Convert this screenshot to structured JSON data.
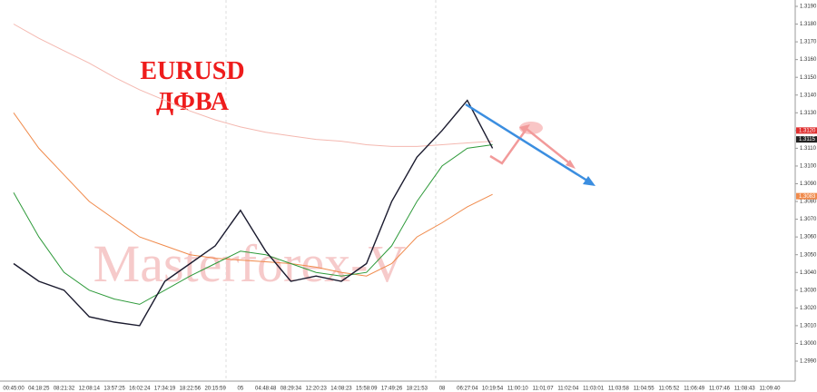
{
  "chart_data": {
    "type": "line",
    "annotations": [
      "EURUSD",
      "ДФВА"
    ],
    "watermark": "Masterforex-V",
    "categories": [
      "00:45:00",
      "04:18:25",
      "08:21:32",
      "12:08:14",
      "13:57:25",
      "16:02:24",
      "17:34:19",
      "18:22:56",
      "20:15:59",
      "05",
      "04:48:48",
      "08:29:34",
      "12:20:23",
      "14:08:23",
      "15:58:09",
      "17:49:26",
      "18:21:53",
      "08",
      "06:27:04",
      "10:19:54",
      "11:00:10",
      "11:01:07",
      "11:02:04",
      "11:03:01",
      "11:03:58",
      "11:04:55",
      "11:05:52",
      "11:06:49",
      "11:07:46",
      "11:08:43",
      "11:09:40"
    ],
    "series": [
      {
        "color": "#f4b8b0",
        "values": [
          1.318,
          1.3172,
          1.3165,
          1.3158,
          1.315,
          1.3143,
          1.3137,
          1.3131,
          1.3126,
          1.3122,
          1.3119,
          1.3117,
          1.3115,
          1.3114,
          1.3112,
          1.3111,
          1.3111,
          1.3112,
          1.3113,
          1.3114,
          null,
          null,
          null,
          null,
          null,
          null,
          null,
          null,
          null,
          null,
          null
        ]
      },
      {
        "color": "#f08a4b",
        "values": [
          1.313,
          1.311,
          1.3095,
          1.308,
          1.307,
          1.306,
          1.3055,
          1.305,
          1.3048,
          1.3047,
          1.3046,
          1.3045,
          1.3043,
          1.304,
          1.3038,
          1.3045,
          1.306,
          1.3068,
          1.3077,
          1.3084,
          null,
          null,
          null,
          null,
          null,
          null,
          null,
          null,
          null,
          null,
          null
        ]
      },
      {
        "color": "#2e9a3a",
        "values": [
          1.3085,
          1.306,
          1.304,
          1.303,
          1.3025,
          1.3022,
          1.303,
          1.3038,
          1.3045,
          1.3052,
          1.305,
          1.3045,
          1.304,
          1.3038,
          1.304,
          1.3055,
          1.308,
          1.31,
          1.311,
          1.3112,
          null,
          null,
          null,
          null,
          null,
          null,
          null,
          null,
          null,
          null,
          null
        ]
      },
      {
        "color": "#1a1a2e",
        "values": [
          1.3045,
          1.3035,
          1.303,
          1.3015,
          1.3012,
          1.301,
          1.3035,
          1.3045,
          1.3055,
          1.3075,
          1.3052,
          1.3035,
          1.3038,
          1.3035,
          1.3045,
          1.308,
          1.3105,
          1.312,
          1.3137,
          1.311,
          null,
          null,
          null,
          null,
          null,
          null,
          null,
          null,
          null,
          null,
          null
        ]
      }
    ],
    "ylim": [
      1.299,
      1.319
    ],
    "yticks": [
      {
        "value": 1.299,
        "label": "1.2990"
      },
      {
        "value": 1.3,
        "label": "1.3000"
      },
      {
        "value": 1.301,
        "label": "1.3010"
      },
      {
        "value": 1.302,
        "label": "1.3020"
      },
      {
        "value": 1.303,
        "label": "1.3030"
      },
      {
        "value": 1.304,
        "label": "1.3040"
      },
      {
        "value": 1.305,
        "label": "1.3050"
      },
      {
        "value": 1.306,
        "label": "1.3060"
      },
      {
        "value": 1.307,
        "label": "1.3070"
      },
      {
        "value": 1.308,
        "label": "1.3080"
      },
      {
        "value": 1.309,
        "label": "1.3090"
      },
      {
        "value": 1.31,
        "label": "1.3100"
      },
      {
        "value": 1.311,
        "label": "1.3110"
      },
      {
        "value": 1.312,
        "label": "1.3120"
      },
      {
        "value": 1.313,
        "label": "1.3130"
      },
      {
        "value": 1.314,
        "label": "1.3140"
      },
      {
        "value": 1.315,
        "label": "1.3150"
      },
      {
        "value": 1.316,
        "label": "1.3160"
      },
      {
        "value": 1.317,
        "label": "1.3170"
      },
      {
        "value": 1.318,
        "label": "1.3180"
      },
      {
        "value": 1.319,
        "label": "1.3190"
      }
    ],
    "price_tags": [
      {
        "value": 1.312,
        "label": "1.3120",
        "color": "#e03030"
      },
      {
        "value": 1.3115,
        "label": "1.3115",
        "color": "#222222"
      },
      {
        "value": 1.3083,
        "label": "1.3083",
        "color": "#f08a4b"
      }
    ]
  }
}
